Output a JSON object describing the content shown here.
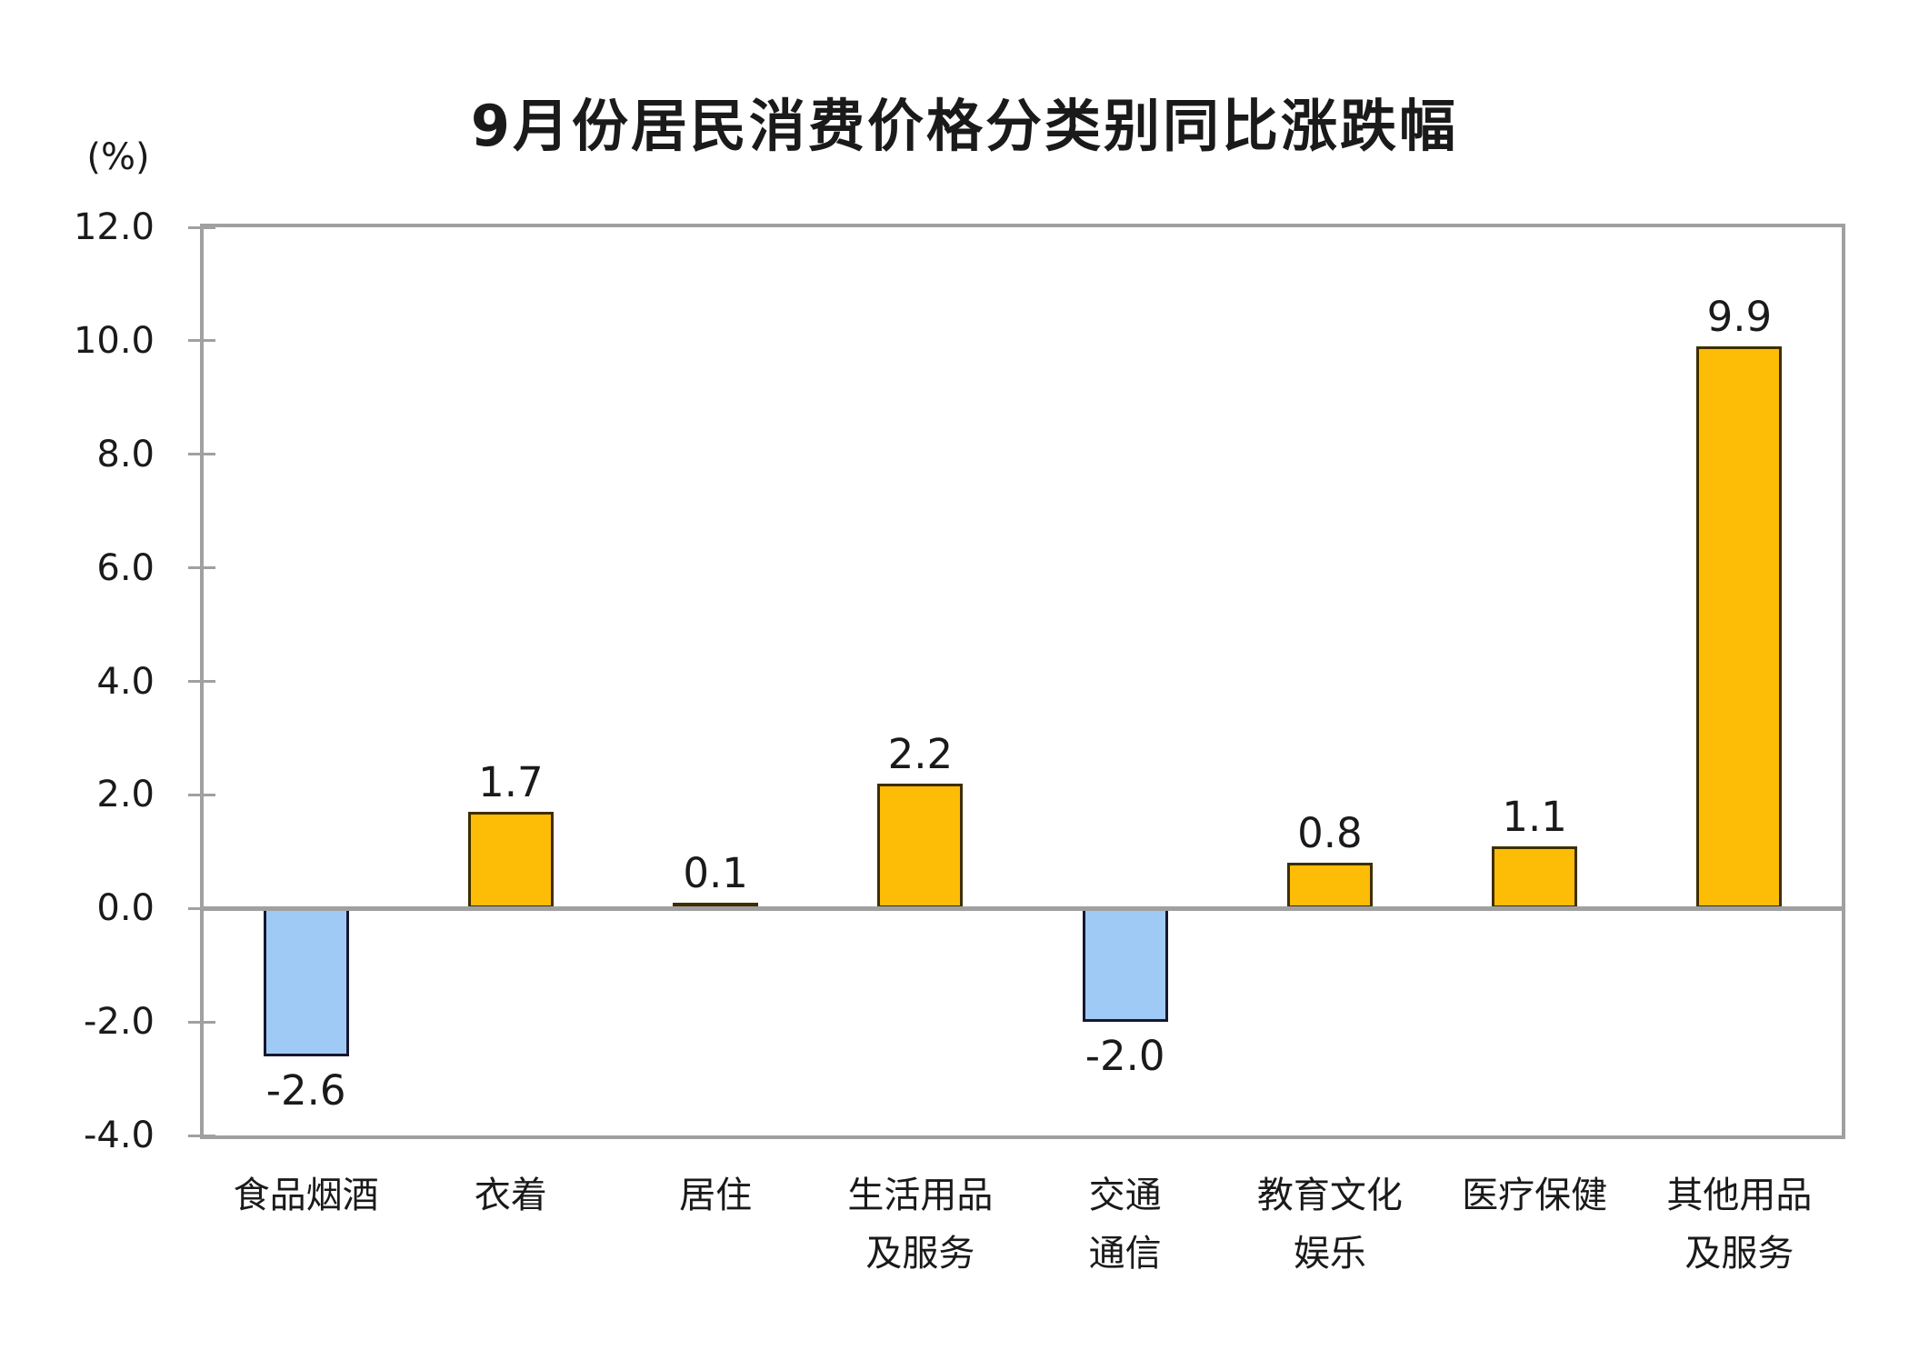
{
  "page": {
    "background": "#ffffff"
  },
  "chart_data": {
    "type": "bar",
    "title": "9月份居民消费价格分类别同比涨跌幅",
    "unit_label": "(%)",
    "categories": [
      "食品烟酒",
      "衣着",
      "居住",
      "生活用品\n及服务",
      "交通\n通信",
      "教育文化\n娱乐",
      "医疗保健",
      "其他用品\n及服务"
    ],
    "values": [
      -2.6,
      1.7,
      0.1,
      2.2,
      -2.0,
      0.8,
      1.1,
      9.9
    ],
    "value_labels": [
      "-2.6",
      "1.7",
      "0.1",
      "2.2",
      "-2.0",
      "0.8",
      "1.1",
      "9.9"
    ],
    "ylim": [
      -4.0,
      12.0
    ],
    "ytick_step": 2.0,
    "ytick_labels": [
      "12.0",
      "10.0",
      "8.0",
      "6.0",
      "4.0",
      "2.0",
      "0.0",
      "-2.0",
      "-4.0"
    ],
    "grid": "off",
    "legend": "none",
    "colors": {
      "positive_fill": "#fdbc05",
      "positive_border": "#3d2e00",
      "negative_fill": "#a0caf6",
      "negative_border": "#17172e",
      "axis_frame": "#a0a0a0",
      "zero_line": "#a0a0a0",
      "text": "#1a1a1a"
    }
  }
}
